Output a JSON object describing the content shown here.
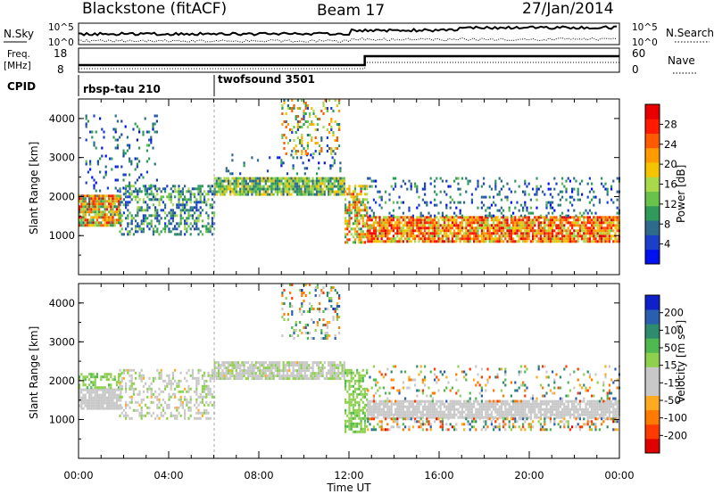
{
  "header": {
    "radar": "Blackstone (fitACF)",
    "beam": "Beam 17",
    "date": "27/Jan/2014"
  },
  "noise_panel": {
    "left_label": "N.Sky",
    "left_ticks": [
      "10^5",
      "10^0"
    ],
    "right_ticks": [
      "10^5",
      "10^0"
    ],
    "right_label": "N.Search"
  },
  "freq_panel": {
    "left_label_1": "Freq.",
    "left_label_2": "[MHz]",
    "left_ticks": [
      "18",
      "8"
    ],
    "right_ticks": [
      "60",
      "0"
    ],
    "right_label": "Nave"
  },
  "cpid": {
    "label": "CPID",
    "modes": [
      {
        "name": "rbsp-tau 210",
        "start_hour": 0
      },
      {
        "name": "twofsound 3501",
        "start_hour": 6
      }
    ]
  },
  "chart_data": [
    {
      "type": "heatmap",
      "name": "power",
      "ylabel": "Slant Range [km]",
      "x_range_hours": [
        0,
        24
      ],
      "ylim": [
        0,
        4500
      ],
      "yticks": [
        "1000",
        "2000",
        "3000",
        "4000"
      ],
      "colorbar": {
        "label": "Power [dB]",
        "range": [
          0,
          32
        ],
        "ticks": [
          "4",
          "8",
          "12",
          "16",
          "20",
          "24",
          "28"
        ],
        "colors": [
          "#0010ee",
          "#1a3fc8",
          "#2e6b8a",
          "#2f9a5a",
          "#69c24b",
          "#a8d94a",
          "#f5c400",
          "#ff9b00",
          "#ff5a00",
          "#ff1a00",
          "#e80000"
        ]
      },
      "bands": [
        {
          "t0": 0.0,
          "t1": 1.9,
          "r0": 1250,
          "r1": 2050,
          "vmin": 8,
          "vmax": 30,
          "density": 0.9
        },
        {
          "t0": 0.3,
          "t1": 3.5,
          "r0": 2050,
          "r1": 4100,
          "vmin": 2,
          "vmax": 12,
          "density": 0.12
        },
        {
          "t0": 1.8,
          "t1": 6.0,
          "r0": 1000,
          "r1": 2300,
          "vmin": 3,
          "vmax": 16,
          "density": 0.45
        },
        {
          "t0": 6.0,
          "t1": 11.8,
          "r0": 2050,
          "r1": 2500,
          "vmin": 6,
          "vmax": 20,
          "density": 0.9
        },
        {
          "t0": 6.0,
          "t1": 11.8,
          "r0": 2600,
          "r1": 3100,
          "vmin": 2,
          "vmax": 10,
          "density": 0.08
        },
        {
          "t0": 9.0,
          "t1": 11.6,
          "r0": 3100,
          "r1": 4500,
          "vmin": 4,
          "vmax": 26,
          "density": 0.22
        },
        {
          "t0": 11.8,
          "t1": 12.8,
          "r0": 800,
          "r1": 2300,
          "vmin": 8,
          "vmax": 28,
          "density": 0.6
        },
        {
          "t0": 12.8,
          "t1": 24.0,
          "r0": 850,
          "r1": 1500,
          "vmin": 14,
          "vmax": 31,
          "density": 0.85
        },
        {
          "t0": 12.8,
          "t1": 24.0,
          "r0": 1500,
          "r1": 2500,
          "vmin": 2,
          "vmax": 12,
          "density": 0.18
        }
      ]
    },
    {
      "type": "heatmap",
      "name": "velocity",
      "ylabel": "Slant Range [km]",
      "xlabel": "Time UT",
      "x_range_hours": [
        0,
        24
      ],
      "ylim": [
        0,
        4500
      ],
      "yticks": [
        "1000",
        "2000",
        "3000",
        "4000"
      ],
      "xticks": [
        "00:00",
        "04:00",
        "08:00",
        "12:00",
        "16:00",
        "20:00",
        "00:00"
      ],
      "colorbar": {
        "label": "Velocity [m s⁻¹]",
        "range": [
          -250,
          250
        ],
        "ticks": [
          "-200",
          "-100",
          "-50",
          "-15",
          "15",
          "50",
          "100",
          "200"
        ],
        "colors": [
          "#e00000",
          "#ff3a00",
          "#ff7a00",
          "#ffaa20",
          "#c8c8c8",
          "#c8c8c8",
          "#8fd14f",
          "#4fb84f",
          "#2e8b6e",
          "#2a5fb0",
          "#1020c8"
        ]
      },
      "bands": [
        {
          "t0": 0.0,
          "t1": 1.9,
          "r0": 1250,
          "r1": 1800,
          "vmin": -10,
          "vmax": 10,
          "density": 0.9
        },
        {
          "t0": 0.0,
          "t1": 1.9,
          "r0": 1800,
          "r1": 2200,
          "vmin": 20,
          "vmax": 80,
          "density": 0.5
        },
        {
          "t0": 1.8,
          "t1": 6.0,
          "r0": 1000,
          "r1": 2300,
          "vmin": -80,
          "vmax": 60,
          "density": 0.35
        },
        {
          "t0": 6.0,
          "t1": 11.8,
          "r0": 2050,
          "r1": 2500,
          "vmin": -70,
          "vmax": 60,
          "density": 0.85
        },
        {
          "t0": 9.0,
          "t1": 11.6,
          "r0": 3100,
          "r1": 4500,
          "vmin": -200,
          "vmax": 220,
          "density": 0.22
        },
        {
          "t0": 11.8,
          "t1": 12.8,
          "r0": 700,
          "r1": 2300,
          "vmin": 30,
          "vmax": 80,
          "density": 0.6
        },
        {
          "t0": 12.8,
          "t1": 24.0,
          "r0": 1050,
          "r1": 1500,
          "vmin": -12,
          "vmax": 12,
          "density": 0.85
        },
        {
          "t0": 12.8,
          "t1": 24.0,
          "r0": 750,
          "r1": 1050,
          "vmin": -220,
          "vmax": 200,
          "density": 0.35
        },
        {
          "t0": 12.8,
          "t1": 24.0,
          "r0": 1500,
          "r1": 2400,
          "vmin": -200,
          "vmax": 200,
          "density": 0.15
        }
      ]
    }
  ]
}
